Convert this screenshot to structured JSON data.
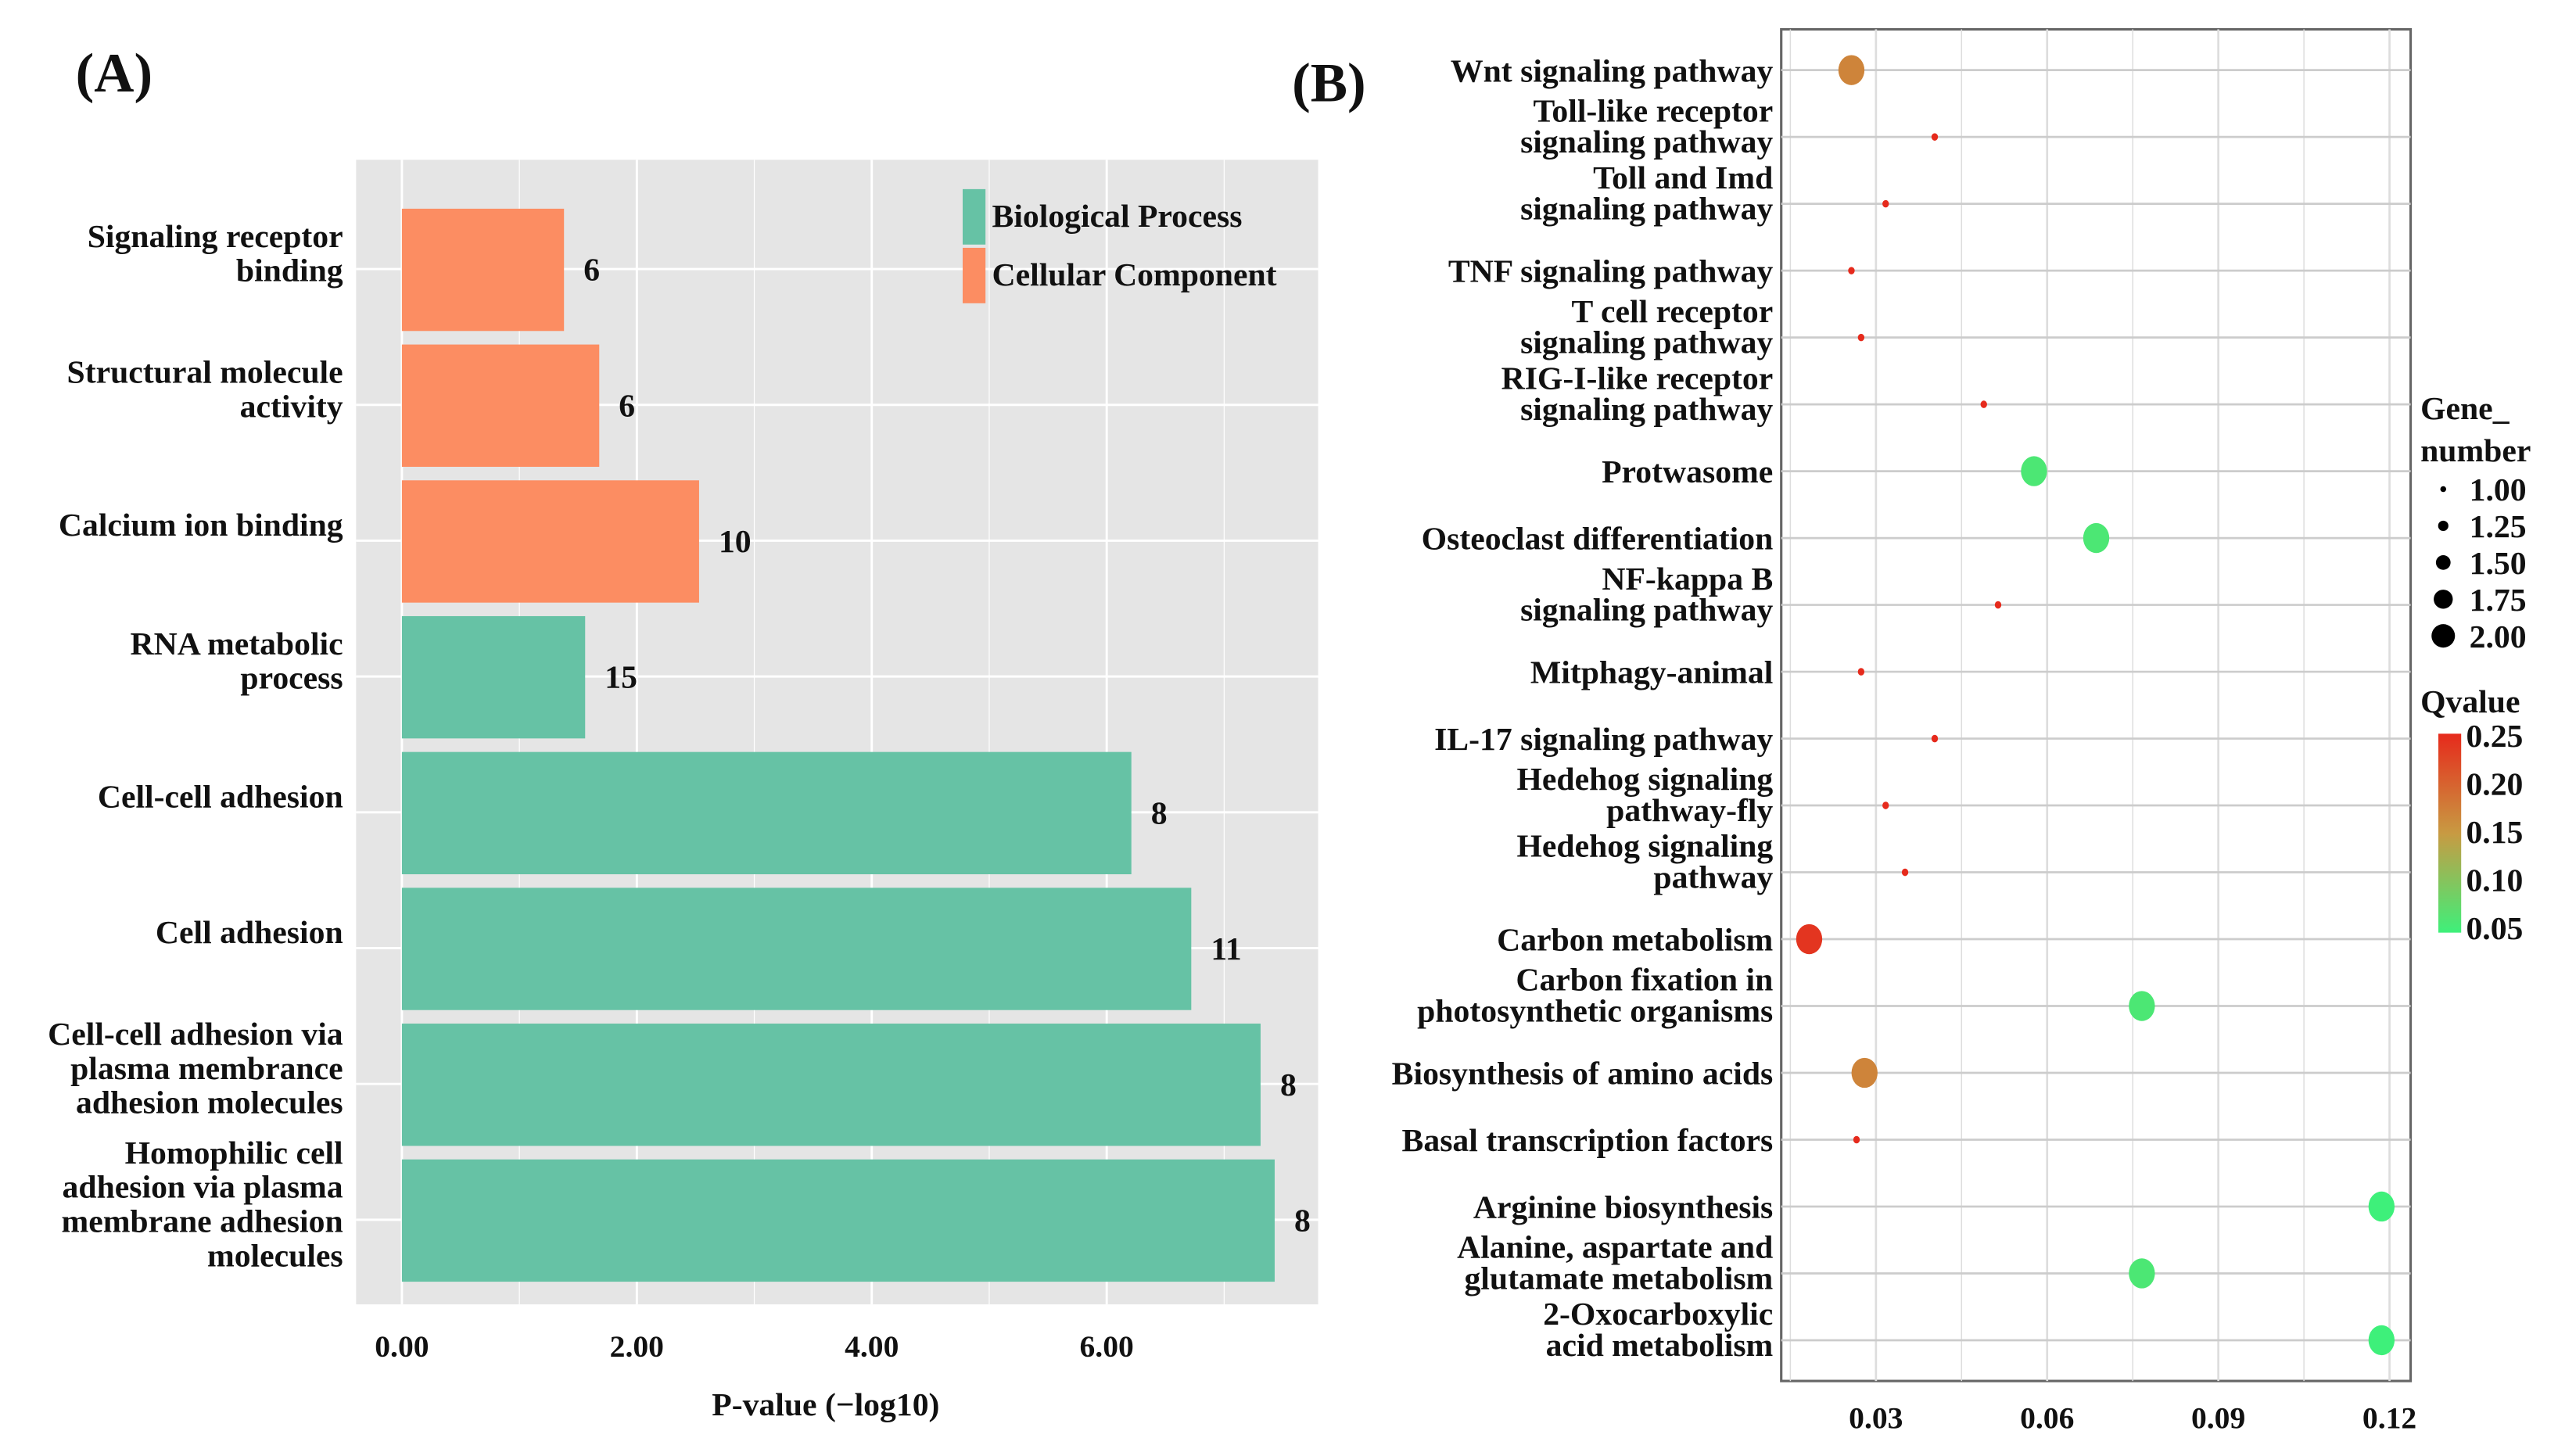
{
  "panels": {
    "a": "(A)",
    "b": "(B)"
  },
  "chart_data": [
    {
      "type": "bar",
      "orientation": "horizontal",
      "categories": [
        "Signaling receptor\nbinding",
        "Structural molecule\nactivity",
        "Calcium ion binding",
        "RNA metabolic\nprocess",
        "Cell-cell adhesion",
        "Cell adhesion",
        "Cell-cell adhesion via\nplasma membrance\nadhesion molecules",
        "Homophilic cell\nadhesion via plasma\nmembrane adhesion\nmolecules"
      ],
      "values": [
        1.38,
        1.68,
        2.53,
        1.56,
        6.21,
        6.72,
        7.31,
        7.43
      ],
      "groups": [
        "Cellular Component",
        "Cellular Component",
        "Cellular Component",
        "Biological Process",
        "Biological Process",
        "Biological Process",
        "Biological Process",
        "Biological Process"
      ],
      "data_labels": [
        "6",
        "6",
        "10",
        "15",
        "8",
        "11",
        "8",
        "8"
      ],
      "xlabel": "P-value (−log10)",
      "xticks": [
        "0.00",
        "2.00",
        "4.00",
        "6.00"
      ],
      "xtick_values": [
        0,
        2,
        4,
        6
      ],
      "xlim": [
        -0.39,
        7.8
      ],
      "grid": true,
      "legend": {
        "placement": "top-right",
        "entries": [
          {
            "name": "Biological Process",
            "color": "#66c2a5"
          },
          {
            "name": "Cellular Component",
            "color": "#fc8d62"
          }
        ]
      }
    },
    {
      "type": "scatter",
      "categories": [
        "Wnt signaling pathway",
        "Toll-like receptor\nsignaling pathway",
        "Toll and Imd\nsignaling pathway",
        "TNF signaling pathway",
        "T cell receptor\nsignaling pathway",
        "RIG-I-like receptor\nsignaling pathway",
        "Protwasome",
        "Osteoclast differentiation",
        "NF-kappa B\nsignaling pathway",
        "Mitphagy-animal",
        "IL-17 signaling pathway",
        "Hedehog signaling\npathway-fly",
        "Hedehog signaling\npathway",
        "Carbon metabolism",
        "Carbon fixation in\nphotosynthetic organisms",
        "Biosynthesis of amino acids",
        "Basal transcription factors",
        "Arginine biosynthesis",
        "Alanine, aspartate and\nglutamate metabolism",
        "2-Oxocarboxylic\nacid metabolism"
      ],
      "x": [
        0.0257,
        0.0403,
        0.0317,
        0.0257,
        0.0274,
        0.0489,
        0.0577,
        0.0686,
        0.0514,
        0.0274,
        0.0403,
        0.0317,
        0.0351,
        0.0183,
        0.0766,
        0.028,
        0.0266,
        0.1186,
        0.0766,
        0.1186
      ],
      "gene_number": [
        2,
        1,
        1,
        1,
        1,
        1,
        2,
        2,
        1,
        1,
        1,
        1,
        1,
        2,
        2,
        2,
        1,
        2,
        2,
        2
      ],
      "qvalue": [
        0.17,
        0.25,
        0.25,
        0.25,
        0.25,
        0.25,
        0.06,
        0.06,
        0.25,
        0.25,
        0.25,
        0.25,
        0.25,
        0.24,
        0.06,
        0.17,
        0.25,
        0.05,
        0.06,
        0.05
      ],
      "xticks": [
        "0.03",
        "0.06",
        "0.09",
        "0.12"
      ],
      "xtick_values": [
        0.03,
        0.06,
        0.09,
        0.12
      ],
      "xlim": [
        0.0134,
        0.1237
      ],
      "grid": true,
      "size_legend": {
        "title_line1": "Gene_",
        "title_line2": "number",
        "values": [
          1.0,
          1.25,
          1.5,
          1.75,
          2.0
        ],
        "labels": [
          "1.00",
          "1.25",
          "1.50",
          "1.75",
          "2.00"
        ]
      },
      "color_legend": {
        "title": "Qvalue",
        "labels": [
          "0.25",
          "0.20",
          "0.15",
          "0.10",
          "0.05"
        ],
        "range": [
          0.05,
          0.25
        ],
        "low_color": "#3ef07a",
        "mid_color": "#c89a42",
        "high_color": "#e62a1c"
      }
    }
  ]
}
